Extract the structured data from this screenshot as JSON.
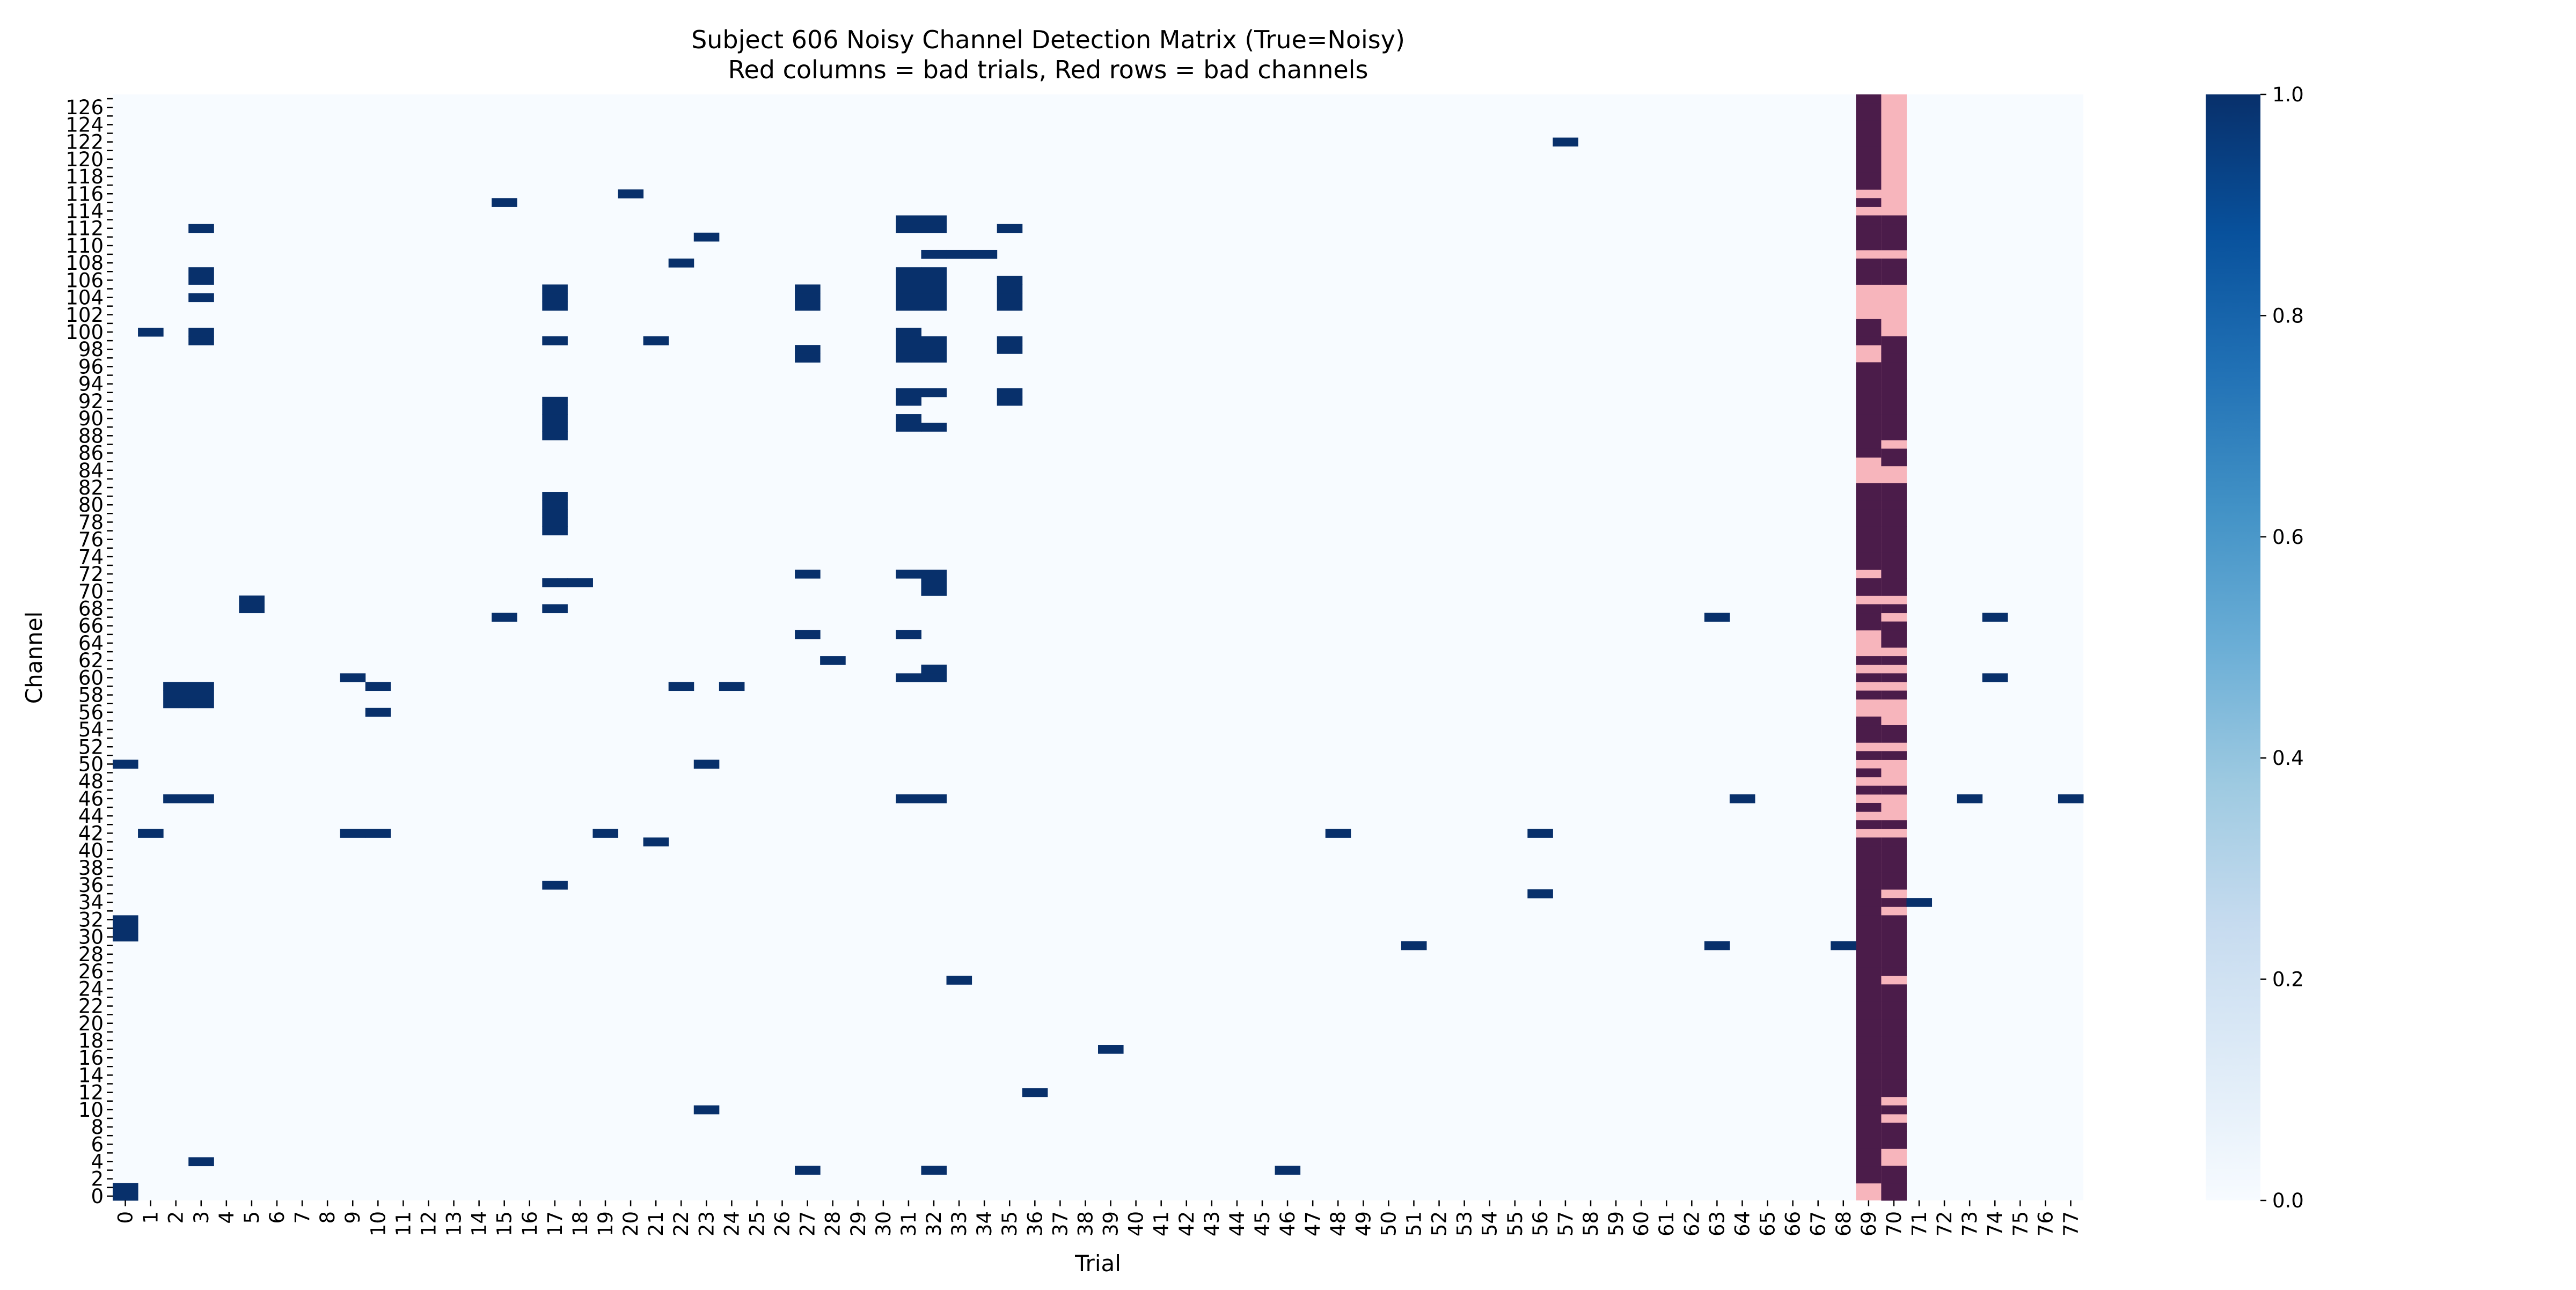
{
  "chart_data": {
    "type": "heatmap",
    "title": "Subject 606 Noisy Channel Detection Matrix (True=Noisy)",
    "subtitle": "Red columns = bad trials, Red rows = bad channels",
    "xlabel": "Trial",
    "ylabel": "Channel",
    "n_trials": 78,
    "n_channels": 128,
    "x_ticks": [
      "0",
      "1",
      "2",
      "3",
      "4",
      "5",
      "6",
      "7",
      "8",
      "9",
      "10",
      "11",
      "12",
      "13",
      "14",
      "15",
      "16",
      "17",
      "18",
      "19",
      "20",
      "21",
      "22",
      "23",
      "24",
      "25",
      "26",
      "27",
      "28",
      "29",
      "30",
      "31",
      "32",
      "33",
      "34",
      "35",
      "36",
      "37",
      "38",
      "39",
      "40",
      "41",
      "42",
      "43",
      "44",
      "45",
      "46",
      "47",
      "48",
      "49",
      "50",
      "51",
      "52",
      "53",
      "54",
      "55",
      "56",
      "57",
      "58",
      "59",
      "60",
      "61",
      "62",
      "63",
      "64",
      "65",
      "66",
      "67",
      "68",
      "69",
      "70",
      "71",
      "72",
      "73",
      "74",
      "75",
      "76",
      "77"
    ],
    "y_tick_step": 2,
    "colorbar": {
      "min": 0.0,
      "max": 1.0,
      "ticks": [
        "0.0",
        "0.2",
        "0.4",
        "0.6",
        "0.8",
        "1.0"
      ],
      "colormap": "Blues"
    },
    "colors": {
      "noisy": "#08306b",
      "clean": "#f7fbff",
      "bad_trial_noisy": "#4b1c4a",
      "bad_trial_clean": "#f7b5bc"
    },
    "bad_trials": [
      69,
      70
    ],
    "bad_channels": [],
    "noisy_cells_by_trial": {
      "0": [
        0,
        1,
        30,
        31,
        32,
        50
      ],
      "1": [
        42,
        100
      ],
      "2": [
        46,
        57,
        58,
        59
      ],
      "3": [
        4,
        46,
        57,
        58,
        59,
        99,
        100,
        104,
        106,
        107,
        112
      ],
      "5": [
        68,
        69
      ],
      "9": [
        42,
        60
      ],
      "10": [
        42,
        56,
        59
      ],
      "15": [
        67,
        115
      ],
      "17": [
        36,
        68,
        71,
        77,
        78,
        79,
        80,
        81,
        88,
        89,
        90,
        91,
        92,
        99,
        103,
        104,
        105
      ],
      "18": [
        71
      ],
      "19": [
        42
      ],
      "20": [
        116
      ],
      "21": [
        41,
        99
      ],
      "22": [
        59,
        108
      ],
      "23": [
        10,
        50,
        111
      ],
      "24": [
        59
      ],
      "27": [
        3,
        65,
        72,
        97,
        98,
        103,
        104,
        105
      ],
      "28": [
        62
      ],
      "31": [
        46,
        60,
        65,
        72,
        89,
        90,
        92,
        93,
        97,
        98,
        99,
        100,
        103,
        104,
        105,
        106,
        107,
        112,
        113
      ],
      "32": [
        3,
        46,
        60,
        61,
        70,
        71,
        72,
        89,
        93,
        97,
        98,
        99,
        103,
        104,
        105,
        106,
        107,
        109,
        112,
        113
      ],
      "33": [
        25,
        109
      ],
      "34": [
        109
      ],
      "35": [
        92,
        93,
        98,
        99,
        103,
        104,
        105,
        106,
        112
      ],
      "36": [
        12
      ],
      "39": [
        17
      ],
      "46": [
        3
      ],
      "48": [
        42
      ],
      "51": [
        29
      ],
      "56": [
        35,
        42
      ],
      "57": [
        122
      ],
      "63": [
        29,
        67
      ],
      "64": [
        46
      ],
      "68": [
        29
      ],
      "71": [
        34
      ],
      "73": [
        46
      ],
      "74": [
        60,
        67
      ],
      "77": [
        46
      ]
    },
    "bad_trial_noisy_channels": {
      "69": [
        2,
        3,
        4,
        5,
        6,
        7,
        8,
        9,
        10,
        11,
        12,
        13,
        14,
        15,
        16,
        17,
        18,
        19,
        20,
        21,
        22,
        23,
        24,
        25,
        26,
        27,
        28,
        29,
        30,
        31,
        32,
        33,
        34,
        35,
        36,
        37,
        38,
        39,
        40,
        41,
        43,
        45,
        47,
        49,
        51,
        53,
        54,
        55,
        58,
        60,
        62,
        66,
        67,
        68,
        70,
        71,
        73,
        74,
        75,
        76,
        77,
        78,
        79,
        80,
        81,
        82,
        86,
        87,
        88,
        89,
        90,
        91,
        92,
        93,
        94,
        95,
        96,
        99,
        100,
        101,
        106,
        107,
        108,
        110,
        111,
        112,
        113,
        115,
        117,
        118,
        119,
        120,
        121,
        122,
        123,
        124,
        125,
        126,
        127
      ],
      "70": [
        0,
        1,
        2,
        3,
        6,
        7,
        8,
        10,
        12,
        13,
        14,
        15,
        16,
        17,
        18,
        19,
        20,
        21,
        22,
        23,
        24,
        26,
        27,
        28,
        29,
        30,
        31,
        32,
        34,
        36,
        37,
        38,
        39,
        40,
        41,
        43,
        47,
        51,
        53,
        54,
        58,
        60,
        62,
        64,
        65,
        66,
        68,
        70,
        71,
        72,
        73,
        74,
        75,
        76,
        77,
        78,
        79,
        80,
        81,
        82,
        85,
        86,
        88,
        89,
        90,
        91,
        92,
        93,
        94,
        95,
        96,
        97,
        98,
        99,
        106,
        107,
        108,
        110,
        111,
        112,
        113
      ]
    }
  }
}
